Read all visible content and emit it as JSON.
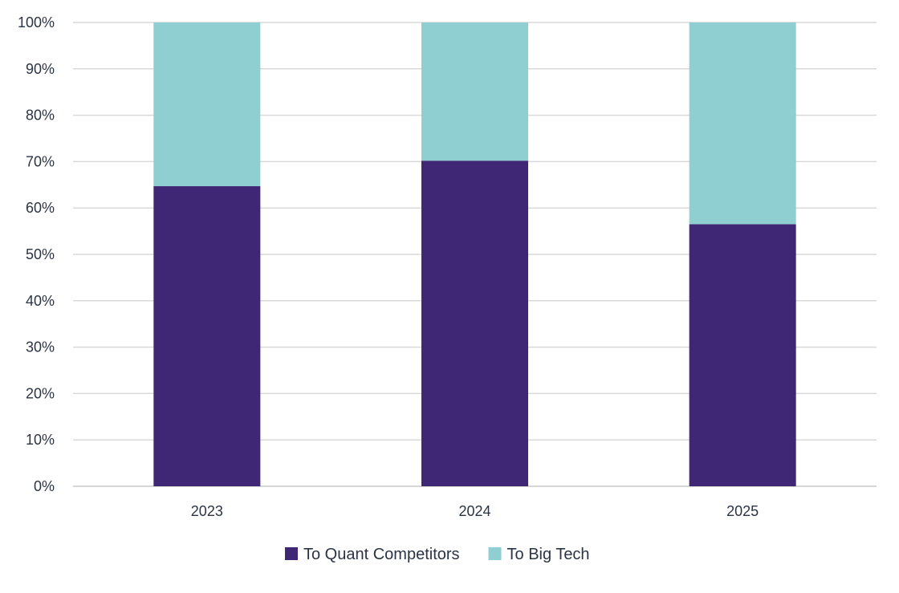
{
  "chart_data": {
    "type": "bar",
    "stacked": true,
    "categories": [
      "2023",
      "2024",
      "2025"
    ],
    "series": [
      {
        "name": "To Quant Competitors",
        "values": [
          64.7,
          70.2,
          56.5
        ],
        "color": "#3f2775"
      },
      {
        "name": "To Big Tech",
        "values": [
          35.3,
          29.8,
          43.5
        ],
        "color": "#8fcfd1"
      }
    ],
    "ylim": [
      0,
      100
    ],
    "yticks": [
      "0%",
      "10%",
      "20%",
      "30%",
      "40%",
      "50%",
      "60%",
      "70%",
      "80%",
      "90%",
      "100%"
    ],
    "grid": true,
    "legend": "bottom",
    "title": "",
    "xlabel": "",
    "ylabel": ""
  }
}
